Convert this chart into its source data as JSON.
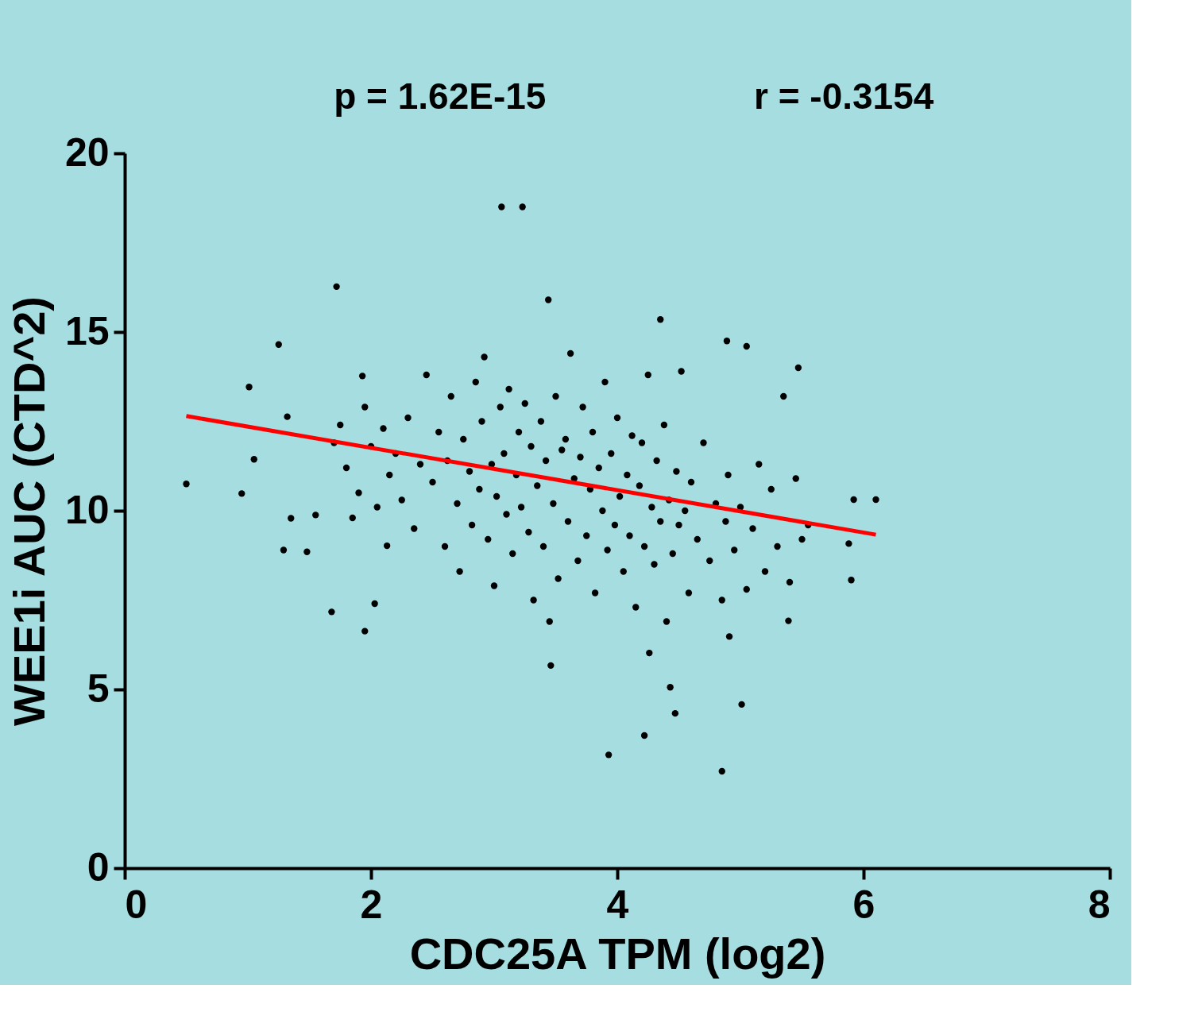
{
  "chart_data": {
    "type": "scatter",
    "xlabel": "CDC25A TPM (log2)",
    "ylabel": "WEE1i AUC (CTD^2)",
    "annotations": [
      "p = 1.62E-15",
      "r = -0.3154"
    ],
    "xlim": [
      0,
      8
    ],
    "xticks": [
      0,
      2,
      4,
      6,
      8
    ],
    "ylim": [
      0,
      20
    ],
    "yticks": [
      0,
      5,
      10,
      15,
      20
    ],
    "grid": false,
    "series": [
      {
        "type": "scatter",
        "marker": "circle",
        "color": "#000000",
        "x": [
          3.06,
          3.23,
          1.72,
          3.44,
          4.35,
          1.25,
          4.89,
          5.05,
          5.47,
          0.5,
          0.95,
          1.29,
          1.68,
          1.95,
          3.46,
          4.26,
          4.43,
          4.47,
          4.22,
          3.93,
          4.85,
          5.01,
          5.92,
          6.1,
          5.9,
          5.88,
          5.39,
          4.91,
          1.01,
          1.05,
          1.32,
          1.35,
          1.48,
          1.55,
          1.93,
          2.03,
          2.13,
          1.7,
          1.75,
          1.8,
          1.85,
          1.9,
          1.95,
          2.0,
          2.05,
          2.1,
          2.15,
          2.2,
          2.25,
          2.3,
          2.35,
          2.4,
          2.45,
          2.5,
          2.55,
          2.6,
          2.62,
          2.65,
          2.7,
          2.72,
          2.75,
          2.8,
          2.82,
          2.85,
          2.88,
          2.9,
          2.92,
          2.95,
          2.98,
          3.0,
          3.02,
          3.05,
          3.08,
          3.1,
          3.12,
          3.15,
          3.18,
          3.2,
          3.22,
          3.25,
          3.28,
          3.3,
          3.32,
          3.35,
          3.38,
          3.4,
          3.42,
          3.45,
          3.48,
          3.5,
          3.52,
          3.55,
          3.58,
          3.6,
          3.62,
          3.65,
          3.68,
          3.7,
          3.72,
          3.75,
          3.78,
          3.8,
          3.82,
          3.85,
          3.88,
          3.9,
          3.92,
          3.95,
          3.98,
          4.0,
          4.02,
          4.05,
          4.08,
          4.1,
          4.12,
          4.15,
          4.18,
          4.2,
          4.22,
          4.25,
          4.28,
          4.3,
          4.32,
          4.35,
          4.38,
          4.4,
          4.42,
          4.45,
          4.48,
          4.5,
          4.52,
          4.55,
          4.58,
          4.6,
          4.65,
          4.7,
          4.75,
          4.8,
          4.85,
          4.88,
          4.9,
          4.95,
          5.0,
          5.05,
          5.1,
          5.15,
          5.2,
          5.25,
          5.3,
          5.35,
          5.4,
          5.45,
          5.5,
          5.55
        ],
        "values": [
          18.5,
          18.5,
          16.27,
          15.9,
          15.35,
          14.65,
          14.75,
          14.6,
          14.0,
          10.75,
          10.48,
          8.9,
          7.17,
          6.63,
          5.67,
          6.02,
          5.06,
          4.33,
          3.71,
          3.17,
          2.71,
          4.58,
          10.31,
          10.31,
          8.06,
          9.08,
          6.92,
          6.48,
          13.46,
          11.44,
          12.63,
          9.79,
          8.85,
          9.88,
          13.77,
          7.4,
          9.02,
          11.9,
          12.4,
          11.2,
          9.8,
          10.5,
          12.9,
          11.8,
          10.1,
          12.3,
          11.0,
          11.6,
          10.3,
          12.6,
          9.5,
          11.3,
          13.8,
          10.8,
          12.2,
          9.0,
          11.4,
          13.2,
          10.2,
          8.3,
          12.0,
          11.1,
          9.6,
          13.6,
          10.6,
          12.5,
          14.3,
          9.2,
          11.3,
          7.9,
          10.4,
          12.9,
          11.6,
          9.9,
          13.4,
          8.8,
          11.0,
          12.2,
          10.1,
          13.0,
          9.4,
          11.8,
          7.5,
          10.7,
          12.5,
          9.0,
          11.4,
          6.9,
          10.2,
          13.2,
          8.1,
          11.7,
          12.0,
          9.7,
          14.4,
          10.9,
          8.6,
          11.5,
          12.9,
          9.3,
          10.6,
          12.2,
          7.7,
          11.2,
          10.0,
          13.6,
          8.9,
          11.6,
          9.6,
          12.6,
          10.4,
          8.3,
          11.0,
          9.3,
          12.1,
          7.3,
          10.7,
          11.9,
          9.0,
          13.8,
          10.1,
          8.5,
          11.4,
          9.7,
          12.4,
          6.9,
          10.3,
          8.8,
          11.1,
          9.6,
          13.9,
          10.0,
          7.7,
          10.8,
          9.2,
          11.9,
          8.6,
          10.2,
          7.5,
          9.7,
          11.0,
          8.9,
          10.1,
          7.8,
          9.5,
          11.3,
          8.3,
          10.6,
          9.0,
          13.2,
          8.0,
          10.9,
          9.2,
          9.6
        ]
      },
      {
        "type": "line",
        "marker": "none",
        "color": "#ff0000",
        "x": [
          0.5,
          6.1
        ],
        "values": [
          12.65,
          9.33
        ]
      }
    ]
  }
}
